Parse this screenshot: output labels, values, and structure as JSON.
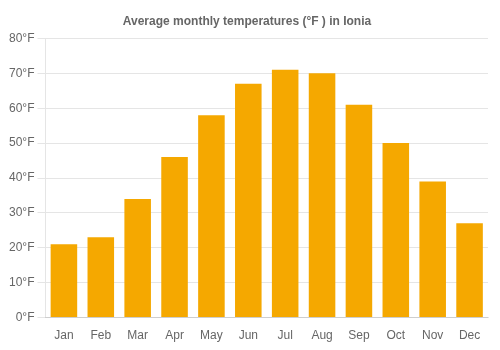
{
  "chart_data": {
    "type": "bar",
    "title": "Average monthly temperatures (°F ) in Ionia",
    "categories": [
      "Jan",
      "Feb",
      "Mar",
      "Apr",
      "May",
      "Jun",
      "Jul",
      "Aug",
      "Sep",
      "Oct",
      "Nov",
      "Dec"
    ],
    "values": [
      21,
      23,
      34,
      46,
      58,
      67,
      71,
      70,
      61,
      50,
      39,
      27
    ],
    "color": "#F5A800",
    "ylim": [
      0,
      80
    ],
    "yticks": [
      {
        "value": 0,
        "label": "0°F"
      },
      {
        "value": 10,
        "label": "10°F"
      },
      {
        "value": 20,
        "label": "20°F"
      },
      {
        "value": 30,
        "label": "30°F"
      },
      {
        "value": 40,
        "label": "40°F"
      },
      {
        "value": 50,
        "label": "50°F"
      },
      {
        "value": 60,
        "label": "60°F"
      },
      {
        "value": 70,
        "label": "70°F"
      },
      {
        "value": 80,
        "label": "80°F"
      }
    ],
    "grid": true
  }
}
